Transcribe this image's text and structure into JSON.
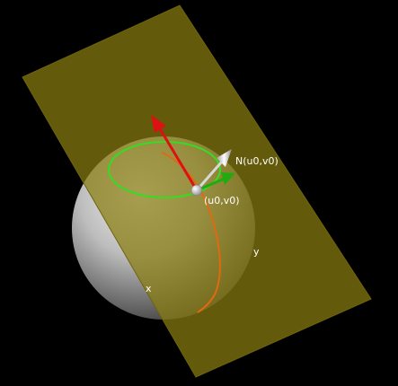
{
  "labels": {
    "normal": "N(u0,v0)",
    "point": "(u0,v0)",
    "y_axis": "y",
    "x_axis": "x"
  },
  "colors": {
    "background": "#000000",
    "tangent_plane": "#8a7d10",
    "sphere": "#c8c8c8",
    "u_curve": "#33dd22",
    "v_curve": "#e06a10",
    "tangent_u": "#22aa11",
    "tangent_v": "#dd1111",
    "normal_vector": "#d8d8d8",
    "point": "#ffffff"
  }
}
